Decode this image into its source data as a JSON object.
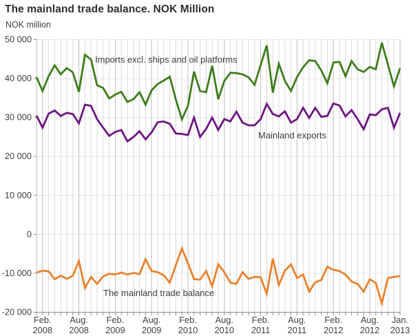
{
  "title": "The mainland trade balance. NOK Million",
  "y_axis_title": "NOK million",
  "colors": {
    "imports_line": "#3e7d1d",
    "exports_line": "#6c1580",
    "balance_line": "#e9822e",
    "grid_minor": "#d9d9d9",
    "grid_major": "#bdbdbd",
    "grid_horizontal": "#e6e6e6",
    "axis": "#8c8c8c",
    "tick_text": "#404040",
    "annotation_text": "#3d3d3d",
    "title_text": "#2e2e2e"
  },
  "chart_data": {
    "type": "line",
    "title": "The mainland trade balance. NOK Million",
    "ylabel": "NOK million",
    "xlabel": "",
    "grid": "both",
    "legend_position": "inline-annotations",
    "ylim": [
      -20000,
      50000
    ],
    "y_ticks": [
      50000,
      40000,
      30000,
      20000,
      10000,
      0,
      -10000,
      -20000
    ],
    "y_tick_labels": [
      "50 000",
      "40 000",
      "30 000",
      "20 000",
      "10 000",
      "0",
      "-10 000",
      "-20 000"
    ],
    "x_start": "2008-01",
    "x_end": "2013-01",
    "x_frequency": "monthly",
    "x_tick_month_indices": [
      1,
      7,
      13,
      19,
      25,
      31,
      37,
      43,
      49,
      55,
      60
    ],
    "x_tick_labels": [
      [
        "Feb.",
        "2008"
      ],
      [
        "Aug.",
        "2008"
      ],
      [
        "Feb.",
        "2009"
      ],
      [
        "Aug.",
        "2009"
      ],
      [
        "Feb.",
        "2010"
      ],
      [
        "Aug.",
        "2010"
      ],
      [
        "Feb.",
        "2011"
      ],
      [
        "Aug.",
        "2011"
      ],
      [
        "Feb.",
        "2012"
      ],
      [
        "Aug.",
        "2012"
      ],
      [
        "Jan.",
        "2013"
      ]
    ],
    "series": [
      {
        "name": "Imports excl. ships and oil platforms",
        "color": "#3e7d1d",
        "values": [
          40300,
          36700,
          40500,
          43300,
          41000,
          42600,
          41500,
          36500,
          46000,
          44800,
          38200,
          37500,
          34800,
          35800,
          36500,
          33900,
          34600,
          36400,
          33200,
          36900,
          38500,
          39400,
          40400,
          34500,
          29400,
          32900,
          41700,
          36700,
          36400,
          43200,
          34600,
          39300,
          41400,
          41300,
          41000,
          40200,
          38300,
          43400,
          48400,
          36300,
          43700,
          39300,
          36700,
          40300,
          42800,
          44600,
          44400,
          42000,
          38700,
          44000,
          44200,
          40500,
          44400,
          42300,
          41600,
          42900,
          42300,
          49100,
          43500,
          37900,
          42600
        ]
      },
      {
        "name": "Mainland exports",
        "color": "#6c1580",
        "values": [
          30400,
          27300,
          30900,
          31700,
          30300,
          31100,
          30800,
          28400,
          33200,
          32900,
          29500,
          27300,
          25200,
          26200,
          26700,
          23800,
          24900,
          26400,
          24300,
          26100,
          28700,
          28900,
          28300,
          25800,
          25700,
          25400,
          29900,
          24900,
          27000,
          29900,
          26700,
          29500,
          28900,
          31400,
          28600,
          27900,
          27900,
          29500,
          33400,
          30800,
          30200,
          31500,
          28600,
          29500,
          32400,
          29800,
          32400,
          30100,
          30300,
          33500,
          33000,
          30200,
          31800,
          29500,
          26900,
          30700,
          30500,
          32000,
          32400,
          27300,
          31100
        ]
      },
      {
        "name": "The mainland trade balance",
        "color": "#e9822e",
        "values": [
          -9900,
          -9400,
          -9600,
          -11600,
          -10700,
          -11500,
          -10700,
          -6900,
          -13900,
          -11000,
          -12800,
          -10900,
          -10200,
          -10400,
          -9900,
          -10400,
          -10000,
          -10300,
          -6500,
          -9500,
          -9800,
          -10600,
          -12500,
          -8000,
          -3700,
          -7500,
          -11600,
          -11700,
          -9500,
          -13400,
          -7800,
          -9800,
          -12500,
          -12800,
          -9800,
          -11500,
          -11000,
          -11100,
          -15400,
          -6300,
          -13100,
          -9400,
          -7800,
          -11300,
          -10400,
          -14800,
          -12400,
          -11800,
          -8400,
          -9200,
          -9500,
          -10400,
          -12200,
          -12800,
          -14800,
          -11600,
          -12600,
          -17800,
          -11300,
          -11000,
          -10800
        ]
      }
    ]
  }
}
